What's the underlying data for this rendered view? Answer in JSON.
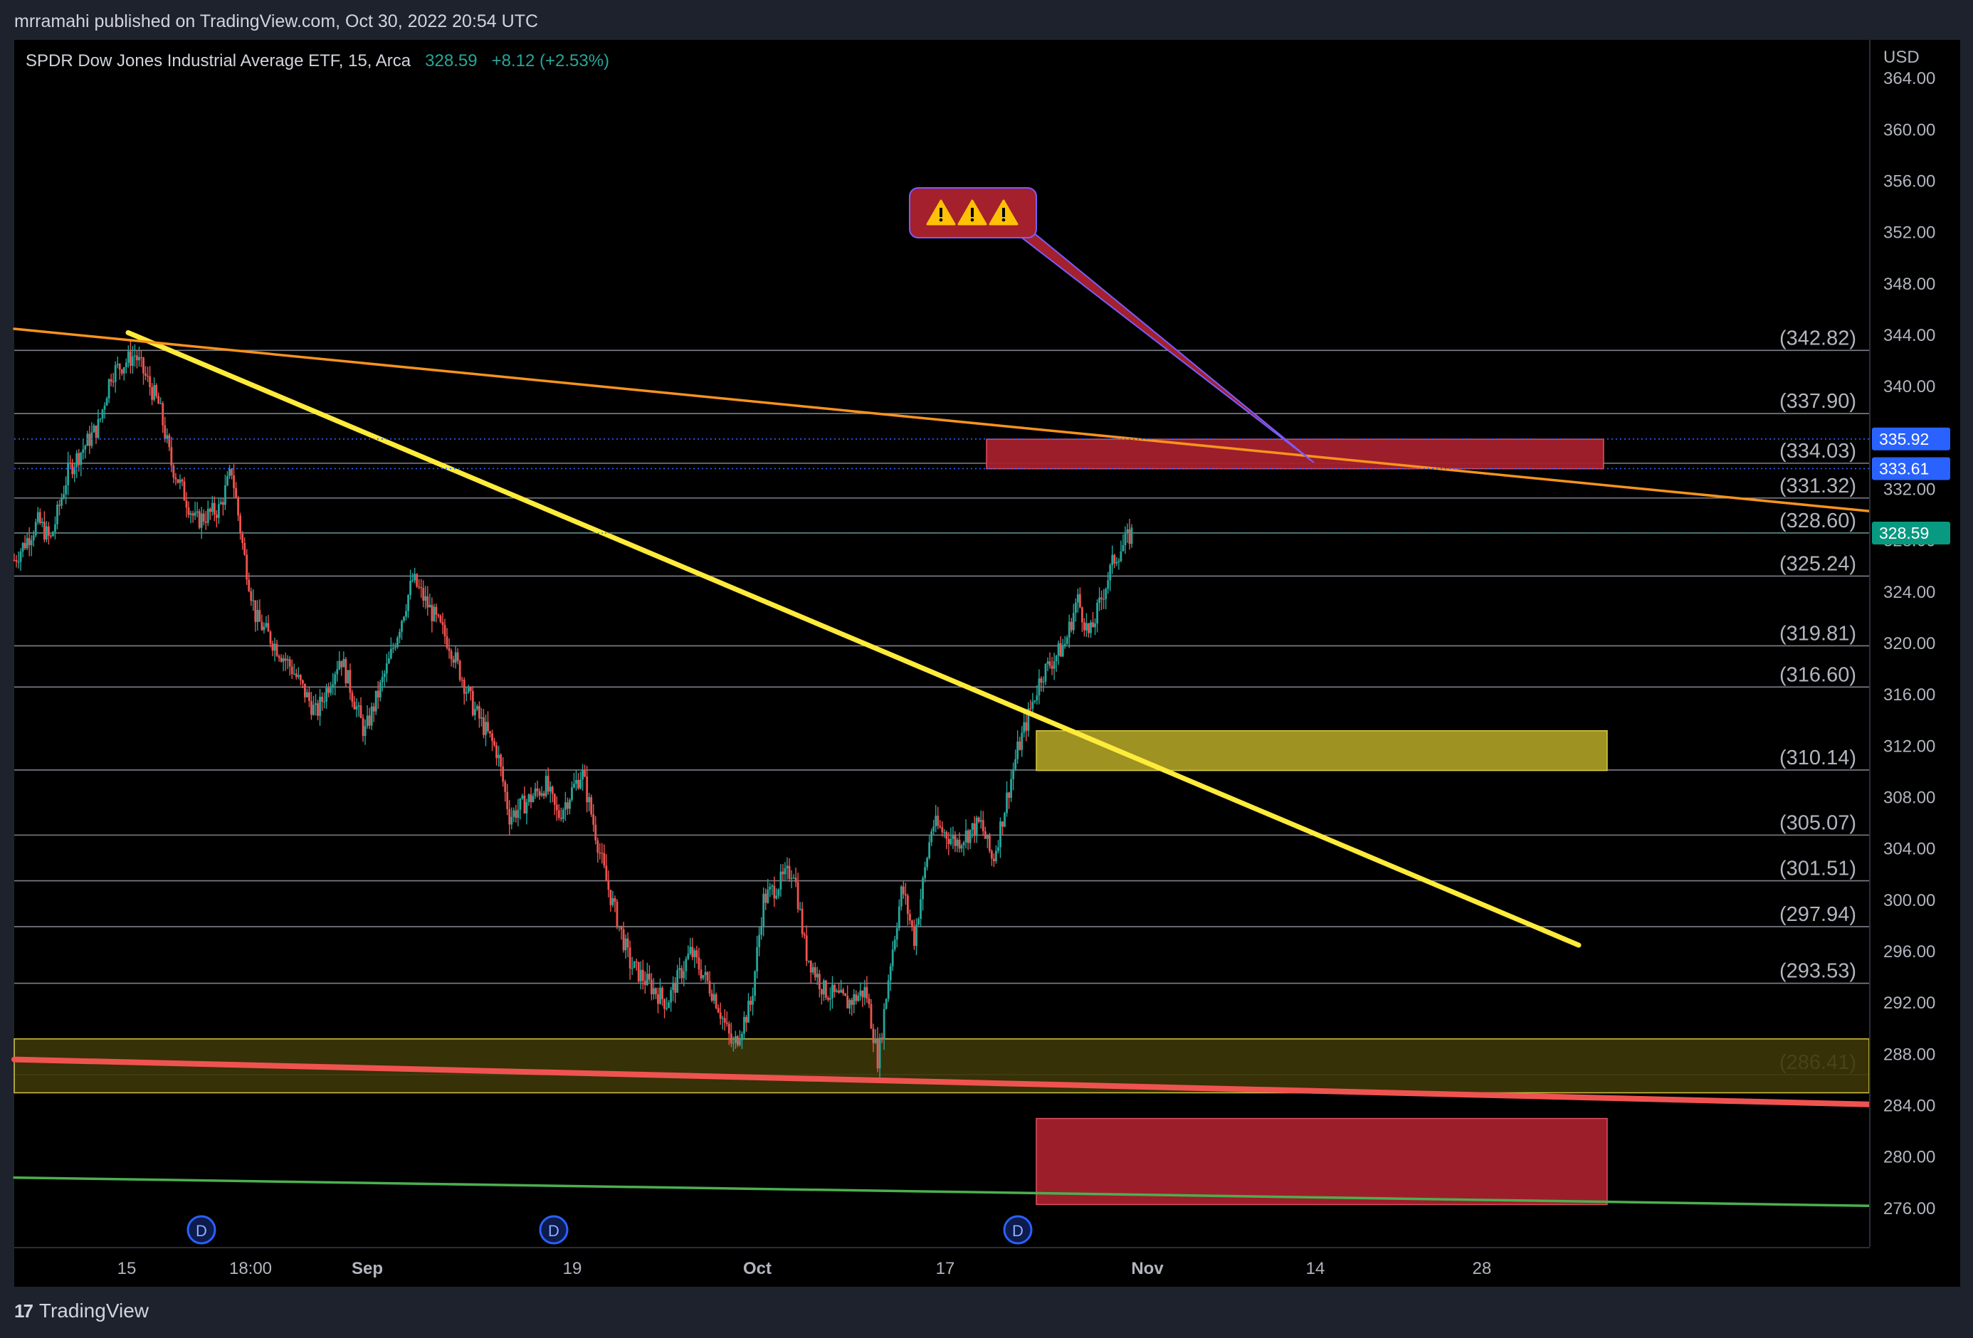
{
  "header": {
    "published_by": "mrramahi published on TradingView.com, Oct 30, 2022 20:54 UTC"
  },
  "legend": {
    "instrument": "SPDR Dow Jones Industrial Average ETF, 15, Arca",
    "last": "328.59",
    "change": "+8.12 (+2.53%)"
  },
  "footer": {
    "brand": "TradingView"
  },
  "colors": {
    "background": "#000000",
    "frame": "#1e222d",
    "up_candle": "#26a69a",
    "down_candle": "#ef5350",
    "yellow_trendline": "#ffeb3b",
    "orange_trendline": "#f7931e",
    "red_zone": "#a4202c",
    "yellow_zone": "#a69a24",
    "green_line": "#4caf50",
    "price_tag_blue": "#2962ff",
    "price_tag_green": "#089981"
  },
  "callout": {
    "icons": [
      "warning-icon",
      "warning-icon",
      "warning-icon"
    ],
    "color": "#a4202c"
  },
  "chart_data": {
    "type": "candlestick",
    "title": "SPDR Dow Jones Industrial Average ETF, 15, Arca",
    "currency": "USD",
    "ylim": [
      273,
      367
    ],
    "y_ticks": [
      "364.00",
      "360.00",
      "356.00",
      "352.00",
      "348.00",
      "344.00",
      "340.00",
      "336.00",
      "332.00",
      "328.00",
      "324.00",
      "320.00",
      "316.00",
      "312.00",
      "308.00",
      "304.00",
      "300.00",
      "296.00",
      "292.00",
      "288.00",
      "284.00",
      "280.00",
      "276.00"
    ],
    "x_ticks": [
      {
        "label": "15",
        "bold": false
      },
      {
        "label": "18:00",
        "bold": false
      },
      {
        "label": "Sep",
        "bold": true
      },
      {
        "label": "19",
        "bold": false
      },
      {
        "label": "Oct",
        "bold": true
      },
      {
        "label": "17",
        "bold": false
      },
      {
        "label": "Nov",
        "bold": true
      },
      {
        "label": "14",
        "bold": false
      },
      {
        "label": "28",
        "bold": false
      }
    ],
    "price_path": [
      {
        "t": 0,
        "p": 326.5
      },
      {
        "t": 0.02,
        "p": 329.5
      },
      {
        "t": 0.03,
        "p": 328.0
      },
      {
        "t": 0.045,
        "p": 333.5
      },
      {
        "t": 0.07,
        "p": 337.0
      },
      {
        "t": 0.08,
        "p": 341.0
      },
      {
        "t": 0.1,
        "p": 342.5
      },
      {
        "t": 0.12,
        "p": 338.5
      },
      {
        "t": 0.13,
        "p": 334.0
      },
      {
        "t": 0.15,
        "p": 329.5
      },
      {
        "t": 0.17,
        "p": 330.5
      },
      {
        "t": 0.18,
        "p": 333.5
      },
      {
        "t": 0.19,
        "p": 327.0
      },
      {
        "t": 0.2,
        "p": 322.0
      },
      {
        "t": 0.23,
        "p": 318.0
      },
      {
        "t": 0.25,
        "p": 314.5
      },
      {
        "t": 0.27,
        "p": 319.0
      },
      {
        "t": 0.29,
        "p": 313.0
      },
      {
        "t": 0.31,
        "p": 318.5
      },
      {
        "t": 0.33,
        "p": 325.0
      },
      {
        "t": 0.36,
        "p": 320.0
      },
      {
        "t": 0.38,
        "p": 315.0
      },
      {
        "t": 0.4,
        "p": 311.5
      },
      {
        "t": 0.41,
        "p": 306.5
      },
      {
        "t": 0.44,
        "p": 309.0
      },
      {
        "t": 0.45,
        "p": 306.5
      },
      {
        "t": 0.47,
        "p": 310.0
      },
      {
        "t": 0.49,
        "p": 301.5
      },
      {
        "t": 0.51,
        "p": 295.0
      },
      {
        "t": 0.54,
        "p": 292.0
      },
      {
        "t": 0.56,
        "p": 296.0
      },
      {
        "t": 0.58,
        "p": 292.5
      },
      {
        "t": 0.595,
        "p": 288.5
      },
      {
        "t": 0.61,
        "p": 292.0
      },
      {
        "t": 0.62,
        "p": 300.0
      },
      {
        "t": 0.645,
        "p": 302.5
      },
      {
        "t": 0.655,
        "p": 296.0
      },
      {
        "t": 0.67,
        "p": 293.0
      },
      {
        "t": 0.69,
        "p": 292.0
      },
      {
        "t": 0.705,
        "p": 293.0
      },
      {
        "t": 0.715,
        "p": 287.5
      },
      {
        "t": 0.725,
        "p": 295.0
      },
      {
        "t": 0.735,
        "p": 301.0
      },
      {
        "t": 0.745,
        "p": 297.0
      },
      {
        "t": 0.76,
        "p": 306.0
      },
      {
        "t": 0.78,
        "p": 304.5
      },
      {
        "t": 0.8,
        "p": 306.0
      },
      {
        "t": 0.81,
        "p": 303.0
      },
      {
        "t": 0.83,
        "p": 311.5
      },
      {
        "t": 0.85,
        "p": 317.5
      },
      {
        "t": 0.87,
        "p": 320.0
      },
      {
        "t": 0.88,
        "p": 323.5
      },
      {
        "t": 0.89,
        "p": 320.5
      },
      {
        "t": 0.91,
        "p": 326.5
      },
      {
        "t": 0.925,
        "p": 328.6
      }
    ],
    "horizontal_levels": [
      342.82,
      337.9,
      334.03,
      331.32,
      328.6,
      325.24,
      319.81,
      316.6,
      310.14,
      305.07,
      301.51,
      297.94,
      293.53,
      286.41
    ],
    "horizontal_level_labels": [
      "(342.82)",
      "(337.90)",
      "(334.03)",
      "(331.32)",
      "(328.60)",
      "(325.24)",
      "(319.81)",
      "(316.60)",
      "(310.14)",
      "(305.07)",
      "(301.51)",
      "(297.94)",
      "(293.53)",
      "(286.41)"
    ],
    "price_tags": [
      {
        "label": "335.92",
        "value": 335.92,
        "color": "#2962ff"
      },
      {
        "label": "333.61",
        "value": 333.61,
        "color": "#2962ff"
      },
      {
        "label": "328.59",
        "value": 328.59,
        "color": "#089981"
      }
    ],
    "zones": [
      {
        "name": "resistance-zone",
        "from": 333.6,
        "to": 335.9,
        "color": "#a4202c"
      },
      {
        "name": "support-zone",
        "from": 310.1,
        "to": 313.2,
        "color": "#a69a24"
      },
      {
        "name": "lower-support-band",
        "from": 285.0,
        "to": 289.2,
        "color": "#3d3608"
      },
      {
        "name": "target-zone",
        "from": 276.3,
        "to": 283.0,
        "color": "#a4202c"
      }
    ],
    "trendlines": [
      {
        "name": "yellow-downtrend",
        "from_value": 344.2,
        "to_value": 296.5,
        "color": "#ffeb3b"
      },
      {
        "name": "orange-downtrend",
        "from_value": 344.5,
        "to_value": 330.3,
        "color": "#f7931e"
      },
      {
        "name": "red-long-trend",
        "from_value": 287.6,
        "to_value": 284.1,
        "color": "#ef5350"
      },
      {
        "name": "green-long-trend",
        "from_value": 278.4,
        "to_value": 276.2,
        "color": "#4caf50"
      }
    ],
    "dividend_markers": [
      "D",
      "D",
      "D"
    ]
  }
}
